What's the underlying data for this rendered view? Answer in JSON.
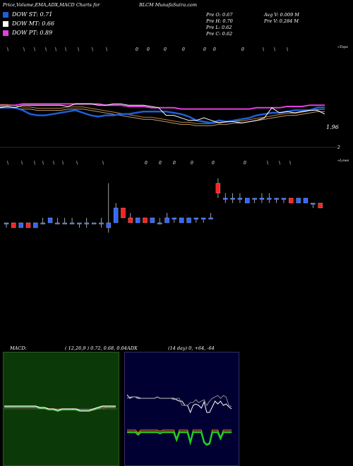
{
  "header": {
    "left": "Price,Volume,EMA,ADX,MACD Charts for",
    "center": "BLCM MunafaSutra.com"
  },
  "legend": [
    {
      "label": "DOW ST: 0.71",
      "color": "#1e5fd6"
    },
    {
      "label": "DOW MT: 0.66",
      "color": "#ffffff"
    },
    {
      "label": "DOW PT: 0.89",
      "color": "#e23fe0"
    }
  ],
  "stats": {
    "prev_open": "Pre   O: 0.67",
    "prev_high": "Pre   H: 0.70",
    "prev_low": "Pre   L: 0.62",
    "prev_close": "Pre   C: 0.62",
    "avg_vol": "Avg V: 0.009  M",
    "prev_vol": "Pre   V: 0.284   M"
  },
  "labels": {
    "price_last": "1.96",
    "price_right": "2",
    "tops": "«Tops",
    "lows": "«Lows"
  },
  "macd": {
    "label": "MACD:",
    "params": "( 12,26,9 ) 0.72,  0.68,  0.04"
  },
  "adx": {
    "label": "ADX",
    "params": "(14  day) 0,  +64,  -64"
  },
  "colors": {
    "up": "#3366ff",
    "down": "#ff2222",
    "st": "#1e5fd6",
    "mt": "#ffffff",
    "pt": "#e23fe0",
    "macd_bg": "#0b3a08",
    "adx_bg": "#000033",
    "adx_line": "#22cc22",
    "adx_minus": "#ff8800"
  },
  "chart_data": {
    "type": "candlestick",
    "price_line": {
      "y_label": "1.96",
      "dow_st": [
        1.1,
        1.1,
        1.1,
        1.08,
        1.05,
        1.04,
        1.04,
        1.05,
        1.06,
        1.07,
        1.08,
        1.06,
        1.04,
        1.03,
        1.04,
        1.04,
        1.05,
        1.05,
        1.06,
        1.07,
        1.07,
        1.07,
        1.07,
        1.06,
        1.05,
        1.03,
        1.0,
        0.99,
        0.98,
        1.0,
        0.99,
        1.0,
        1.01,
        1.02,
        1.04,
        1.05,
        1.06,
        1.06,
        1.07,
        1.08,
        1.08,
        1.08,
        1.1,
        1.1
      ],
      "dow_mt": [
        1.12,
        1.12,
        1.11,
        1.1,
        1.1,
        1.09,
        1.09,
        1.09,
        1.09,
        1.1,
        1.1,
        1.1,
        1.09,
        1.08,
        1.07,
        1.06,
        1.05,
        1.04,
        1.03,
        1.02,
        1.02,
        1.01,
        1.0,
        0.99,
        0.98,
        0.98,
        0.97,
        0.97,
        0.97,
        0.98,
        0.98,
        0.99,
        0.99,
        1.0,
        1.01,
        1.02,
        1.03,
        1.04,
        1.05,
        1.05,
        1.06,
        1.07,
        1.08,
        1.08
      ],
      "dow_pt": [
        1.12,
        1.12,
        1.12,
        1.13,
        1.13,
        1.13,
        1.13,
        1.13,
        1.13,
        1.13,
        1.13,
        1.13,
        1.13,
        1.13,
        1.12,
        1.12,
        1.12,
        1.11,
        1.11,
        1.11,
        1.1,
        1.1,
        1.1,
        1.1,
        1.09,
        1.09,
        1.09,
        1.09,
        1.09,
        1.09,
        1.09,
        1.09,
        1.09,
        1.09,
        1.1,
        1.1,
        1.1,
        1.1,
        1.11,
        1.11,
        1.11,
        1.12,
        1.12,
        1.12
      ],
      "close": [
        1.1,
        1.11,
        1.1,
        1.12,
        1.12,
        1.12,
        1.12,
        1.12,
        1.12,
        1.11,
        1.13,
        1.13,
        1.13,
        1.12,
        1.12,
        1.13,
        1.13,
        1.12,
        1.12,
        1.12,
        1.11,
        1.1,
        1.04,
        1.04,
        1.02,
        1.0,
        1.0,
        1.02,
        1.0,
        0.98,
        0.99,
        0.99,
        0.98,
        0.99,
        1.0,
        1.02,
        1.1,
        1.06,
        1.07,
        1.06,
        1.07,
        1.08,
        1.08,
        1.05
      ]
    },
    "candles": [
      {
        "o": 0.66,
        "h": 0.66,
        "l": 0.65,
        "c": 0.66
      },
      {
        "o": 0.66,
        "h": 0.66,
        "l": 0.65,
        "c": 0.65
      },
      {
        "o": 0.65,
        "h": 0.66,
        "l": 0.65,
        "c": 0.66
      },
      {
        "o": 0.66,
        "h": 0.66,
        "l": 0.65,
        "c": 0.65
      },
      {
        "o": 0.65,
        "h": 0.66,
        "l": 0.65,
        "c": 0.66
      },
      {
        "o": 0.66,
        "h": 0.67,
        "l": 0.66,
        "c": 0.66
      },
      {
        "o": 0.66,
        "h": 0.67,
        "l": 0.66,
        "c": 0.67
      },
      {
        "o": 0.66,
        "h": 0.67,
        "l": 0.66,
        "c": 0.66
      },
      {
        "o": 0.66,
        "h": 0.67,
        "l": 0.66,
        "c": 0.66
      },
      {
        "o": 0.66,
        "h": 0.67,
        "l": 0.66,
        "c": 0.66
      },
      {
        "o": 0.66,
        "h": 0.66,
        "l": 0.65,
        "c": 0.66
      },
      {
        "o": 0.66,
        "h": 0.67,
        "l": 0.65,
        "c": 0.66
      },
      {
        "o": 0.66,
        "h": 0.66,
        "l": 0.66,
        "c": 0.66
      },
      {
        "o": 0.66,
        "h": 0.67,
        "l": 0.65,
        "c": 0.66
      },
      {
        "o": 0.65,
        "h": 0.74,
        "l": 0.64,
        "c": 0.66
      },
      {
        "o": 0.66,
        "h": 0.7,
        "l": 0.66,
        "c": 0.69
      },
      {
        "o": 0.69,
        "h": 0.69,
        "l": 0.67,
        "c": 0.67
      },
      {
        "o": 0.67,
        "h": 0.68,
        "l": 0.66,
        "c": 0.66
      },
      {
        "o": 0.66,
        "h": 0.67,
        "l": 0.66,
        "c": 0.67
      },
      {
        "o": 0.67,
        "h": 0.67,
        "l": 0.66,
        "c": 0.66
      },
      {
        "o": 0.66,
        "h": 0.67,
        "l": 0.66,
        "c": 0.67
      },
      {
        "o": 0.66,
        "h": 0.67,
        "l": 0.66,
        "c": 0.66
      },
      {
        "o": 0.66,
        "h": 0.68,
        "l": 0.66,
        "c": 0.67
      },
      {
        "o": 0.67,
        "h": 0.67,
        "l": 0.66,
        "c": 0.67
      },
      {
        "o": 0.66,
        "h": 0.67,
        "l": 0.66,
        "c": 0.67
      },
      {
        "o": 0.66,
        "h": 0.67,
        "l": 0.66,
        "c": 0.67
      },
      {
        "o": 0.67,
        "h": 0.67,
        "l": 0.66,
        "c": 0.67
      },
      {
        "o": 0.67,
        "h": 0.67,
        "l": 0.66,
        "c": 0.67
      },
      {
        "o": 0.67,
        "h": 0.68,
        "l": 0.67,
        "c": 0.67
      },
      {
        "o": 0.74,
        "h": 0.75,
        "l": 0.71,
        "c": 0.72
      },
      {
        "o": 0.71,
        "h": 0.72,
        "l": 0.7,
        "c": 0.71
      },
      {
        "o": 0.71,
        "h": 0.72,
        "l": 0.7,
        "c": 0.71
      },
      {
        "o": 0.71,
        "h": 0.72,
        "l": 0.7,
        "c": 0.71
      },
      {
        "o": 0.7,
        "h": 0.71,
        "l": 0.7,
        "c": 0.71
      },
      {
        "o": 0.71,
        "h": 0.71,
        "l": 0.7,
        "c": 0.71
      },
      {
        "o": 0.71,
        "h": 0.72,
        "l": 0.7,
        "c": 0.71
      },
      {
        "o": 0.71,
        "h": 0.72,
        "l": 0.7,
        "c": 0.71
      },
      {
        "o": 0.71,
        "h": 0.71,
        "l": 0.7,
        "c": 0.71
      },
      {
        "o": 0.71,
        "h": 0.71,
        "l": 0.7,
        "c": 0.71
      },
      {
        "o": 0.71,
        "h": 0.71,
        "l": 0.7,
        "c": 0.7
      },
      {
        "o": 0.7,
        "h": 0.71,
        "l": 0.7,
        "c": 0.71
      },
      {
        "o": 0.7,
        "h": 0.71,
        "l": 0.7,
        "c": 0.71
      },
      {
        "o": 0.7,
        "h": 0.7,
        "l": 0.69,
        "c": 0.7
      },
      {
        "o": 0.7,
        "h": 0.7,
        "l": 0.69,
        "c": 0.69
      }
    ],
    "macd_ref": {
      "macd": [
        0.5,
        0.5,
        0.5,
        0.5,
        0.5,
        0.5,
        0.5,
        0.5,
        0.49,
        0.49,
        0.48,
        0.48,
        0.47,
        0.48,
        0.48,
        0.48,
        0.48,
        0.47,
        0.47,
        0.47,
        0.48,
        0.49,
        0.5,
        0.5,
        0.5,
        0.5
      ],
      "signal": [
        0.49,
        0.49,
        0.49,
        0.49,
        0.49,
        0.49,
        0.49,
        0.49,
        0.49,
        0.48,
        0.48,
        0.48,
        0.48,
        0.48,
        0.48,
        0.48,
        0.47,
        0.47,
        0.47,
        0.47,
        0.47,
        0.48,
        0.48,
        0.49,
        0.49,
        0.49
      ]
    },
    "adx_ref": {
      "adx": [
        30,
        30,
        30,
        30,
        26,
        30,
        30,
        30,
        30,
        30,
        30,
        30,
        28,
        30,
        30,
        30,
        30,
        30,
        18,
        30,
        30,
        30,
        30,
        14,
        30,
        30,
        30,
        30,
        14,
        10,
        12,
        30,
        30,
        30,
        20,
        30,
        30,
        30,
        30
      ],
      "plus": [
        85,
        80,
        82,
        82,
        80,
        80,
        80,
        80,
        80,
        80,
        80,
        82,
        80,
        80,
        80,
        80,
        80,
        80,
        78,
        76,
        76,
        70,
        70,
        60,
        70,
        72,
        70,
        66,
        75,
        60,
        60,
        68,
        76,
        72,
        76,
        70,
        72,
        68,
        65
      ],
      "minus": [
        80,
        82,
        82,
        82,
        82,
        80,
        80,
        80,
        80,
        80,
        80,
        82,
        80,
        80,
        80,
        80,
        80,
        78,
        80,
        80,
        70,
        70,
        70,
        74,
        74,
        78,
        74,
        76,
        78,
        70,
        76,
        80,
        82,
        84,
        80,
        84,
        82,
        70,
        68
      ]
    }
  }
}
